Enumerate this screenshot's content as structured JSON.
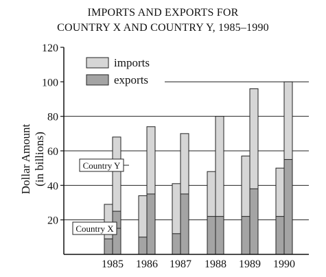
{
  "chart_data": {
    "type": "bar",
    "title_line1": "IMPORTS AND EXPORTS FOR",
    "title_line2": "COUNTRY X AND COUNTRY Y, 1985–1990",
    "ylabel_line1": "Dollar Amount",
    "ylabel_line2": "(in billions)",
    "categories": [
      "1985",
      "1986",
      "1987",
      "1988",
      "1989",
      "1990"
    ],
    "yticks": [
      20,
      40,
      60,
      80,
      100,
      120
    ],
    "ylim": [
      0,
      120
    ],
    "grid": true,
    "legend": {
      "placement": "top-left",
      "items": [
        {
          "label": "imports",
          "color": "#d6d6d6"
        },
        {
          "label": "exports",
          "color": "#a4a4a4"
        }
      ]
    },
    "countries": [
      {
        "name": "Country X",
        "imports": [
          29,
          34,
          41,
          48,
          57,
          50
        ],
        "exports": [
          9,
          10,
          12,
          22,
          22,
          22
        ]
      },
      {
        "name": "Country Y",
        "imports": [
          68,
          74,
          70,
          80,
          96,
          100
        ],
        "exports": [
          25,
          35,
          35,
          22,
          38,
          55
        ]
      }
    ],
    "colors": {
      "imports": "#d6d6d6",
      "exports": "#a4a4a4",
      "axis": "#111111"
    }
  }
}
